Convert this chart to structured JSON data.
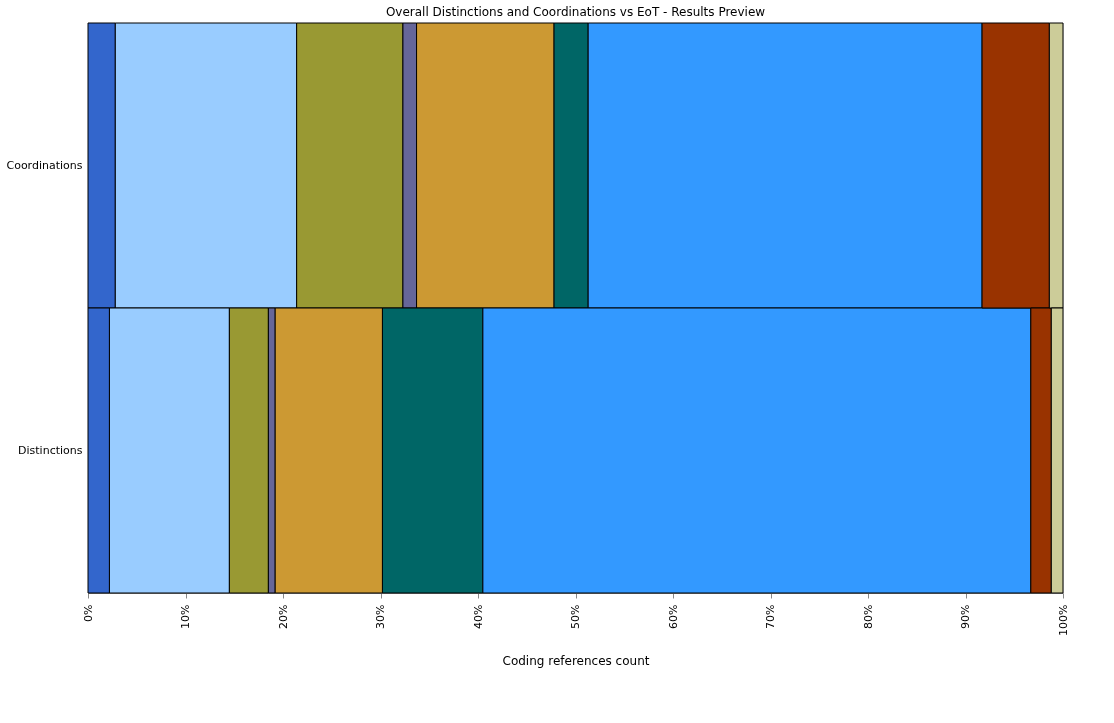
{
  "chart_data": {
    "type": "bar",
    "orientation": "horizontal",
    "stacked": true,
    "title": "Overall Distinctions and Coordinations vs EoT - Results Preview",
    "xlabel": "Coding references count",
    "categories": [
      "Coordinations",
      "Distinctions"
    ],
    "series": [
      {
        "color": "#3366cc",
        "values": [
          2.8,
          2.2
        ]
      },
      {
        "color": "#99ccff",
        "values": [
          18.6,
          12.3
        ]
      },
      {
        "color": "#999933",
        "values": [
          10.9,
          4.0
        ]
      },
      {
        "color": "#666699",
        "values": [
          1.4,
          0.7
        ]
      },
      {
        "color": "#cc9933",
        "values": [
          14.1,
          11.0
        ]
      },
      {
        "color": "#006666",
        "values": [
          3.5,
          10.3
        ]
      },
      {
        "color": "#3399ff",
        "values": [
          40.4,
          56.2
        ]
      },
      {
        "color": "#993300",
        "values": [
          6.9,
          2.1
        ]
      },
      {
        "color": "#cccc99",
        "values": [
          1.4,
          1.2
        ]
      }
    ],
    "xlim": [
      0,
      100
    ],
    "xticks": [
      {
        "value": 0,
        "label": "0%"
      },
      {
        "value": 10,
        "label": "10%"
      },
      {
        "value": 20,
        "label": "20%"
      },
      {
        "value": 30,
        "label": "30%"
      },
      {
        "value": 40,
        "label": "40%"
      },
      {
        "value": 50,
        "label": "50%"
      },
      {
        "value": 60,
        "label": "60%"
      },
      {
        "value": 70,
        "label": "70%"
      },
      {
        "value": 80,
        "label": "80%"
      },
      {
        "value": 90,
        "label": "90%"
      },
      {
        "value": 100,
        "label": "100%"
      }
    ],
    "legend": false
  }
}
